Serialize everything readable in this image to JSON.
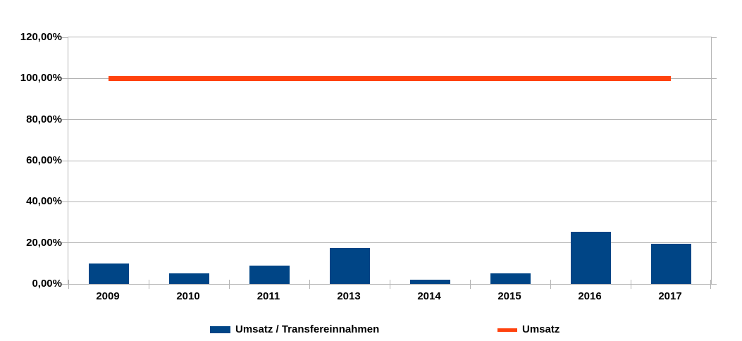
{
  "chart_data": {
    "type": "bar",
    "categories": [
      "2009",
      "2010",
      "2011",
      "2013",
      "2014",
      "2015",
      "2016",
      "2017"
    ],
    "series": [
      {
        "name": "Umsatz / Transfereinnahmen",
        "type": "bar",
        "color": "#004586",
        "values": [
          10,
          5,
          9,
          17.5,
          2,
          5,
          25.5,
          19.5
        ]
      },
      {
        "name": "Umsatz",
        "type": "line",
        "color": "#FF420E",
        "values": [
          100,
          100,
          100,
          100,
          100,
          100,
          100,
          100
        ]
      }
    ],
    "title": "",
    "xlabel": "",
    "ylabel": "",
    "ylim": [
      0,
      120
    ],
    "ytick_step": 20,
    "yticks": [
      {
        "value": 120,
        "label": "120,00%"
      },
      {
        "value": 100,
        "label": "100,00%"
      },
      {
        "value": 80,
        "label": "80,00%"
      },
      {
        "value": 60,
        "label": "60,00%"
      },
      {
        "value": 40,
        "label": "40,00%"
      },
      {
        "value": 20,
        "label": "20,00%"
      },
      {
        "value": 0,
        "label": "0,00%"
      }
    ],
    "grid": true,
    "legend_position": "bottom"
  },
  "colors": {
    "bar": "#004586",
    "line": "#FF420E",
    "grid": "#b3b3b3",
    "text": "#000000",
    "background": "#ffffff"
  }
}
